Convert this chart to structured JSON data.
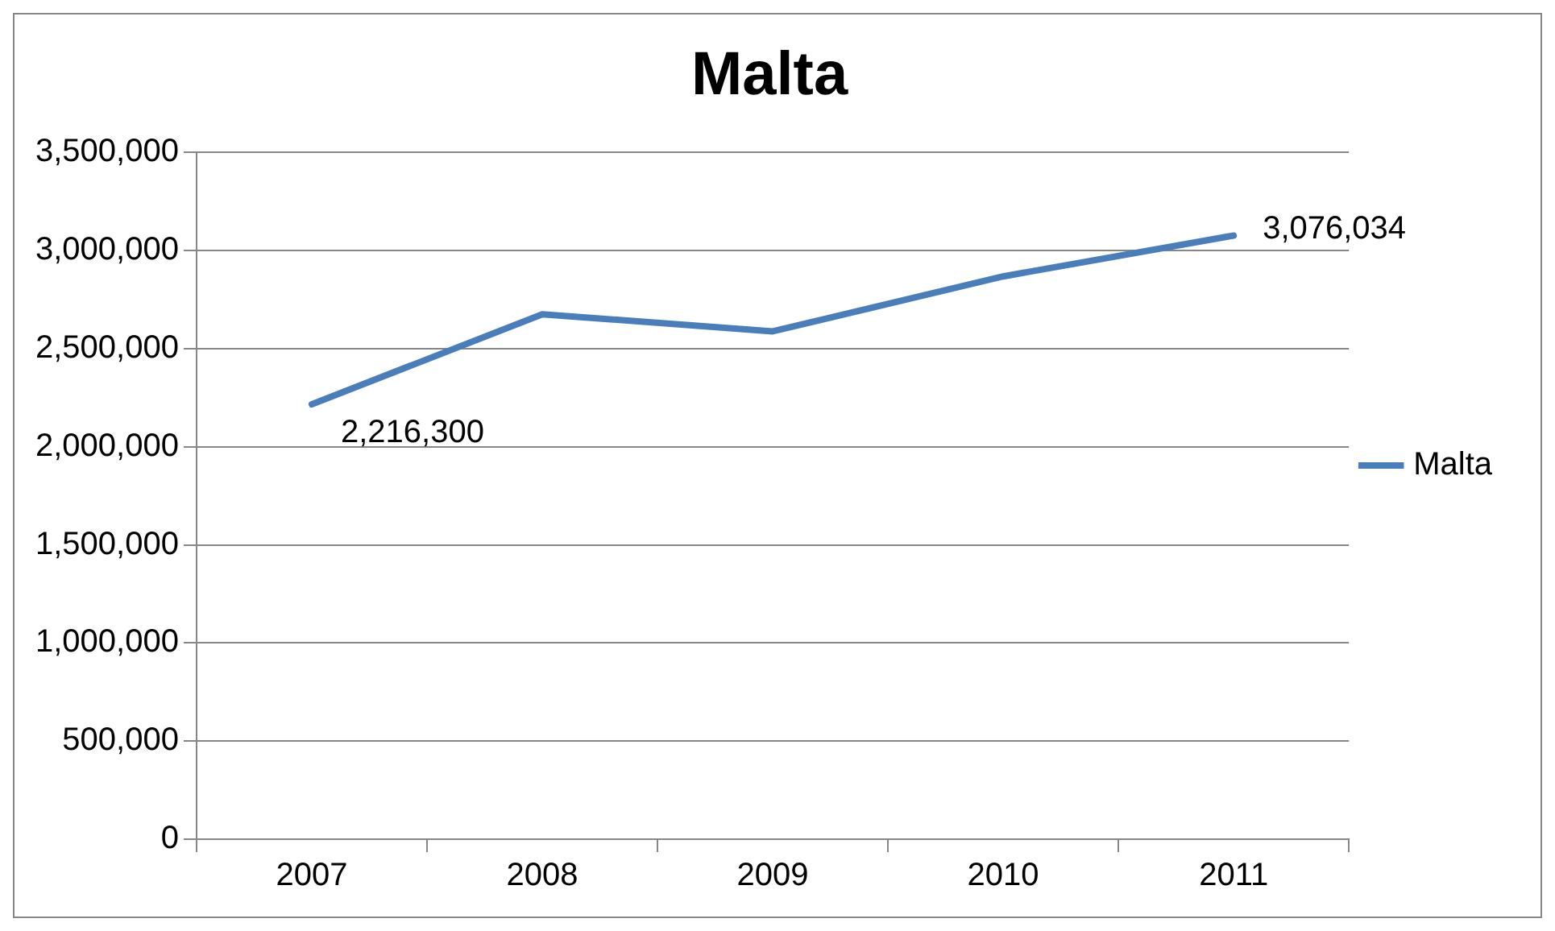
{
  "chart_data": {
    "type": "line",
    "title": "Malta",
    "categories": [
      "2007",
      "2008",
      "2009",
      "2010",
      "2011"
    ],
    "series": [
      {
        "name": "Malta",
        "color": "#4a7ebb",
        "values": [
          2216300,
          2675000,
          2588000,
          2868000,
          3076034
        ],
        "value_labels": [
          "2,216,300",
          null,
          null,
          null,
          "3,076,034"
        ]
      }
    ],
    "ylim": [
      0,
      3500000
    ],
    "yticks": [
      {
        "value": 0,
        "label": "0"
      },
      {
        "value": 500000,
        "label": "500,000"
      },
      {
        "value": 1000000,
        "label": "1,000,000"
      },
      {
        "value": 1500000,
        "label": "1,500,000"
      },
      {
        "value": 2000000,
        "label": "2,000,000"
      },
      {
        "value": 2500000,
        "label": "2,500,000"
      },
      {
        "value": 3000000,
        "label": "3,000,000"
      },
      {
        "value": 3500000,
        "label": "3,500,000"
      }
    ],
    "grid": "y",
    "legend": "right",
    "marker": "none",
    "line_style": "solid"
  }
}
